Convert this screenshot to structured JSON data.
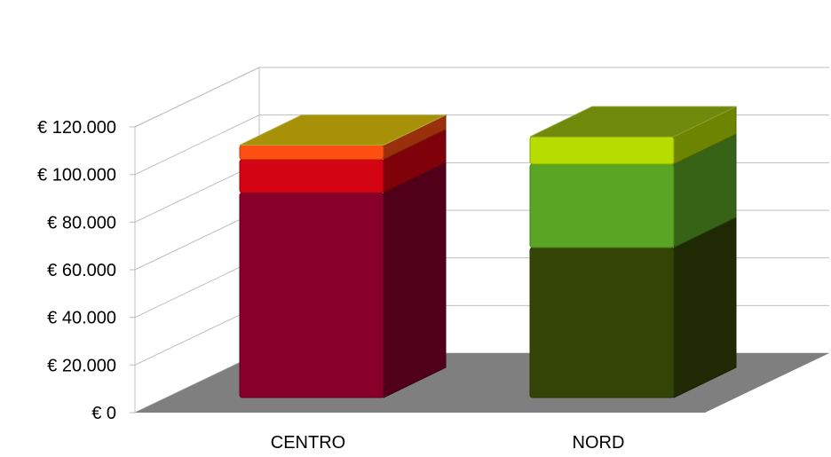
{
  "chart_data": {
    "type": "bar",
    "stacked": true,
    "three_d": true,
    "title": "",
    "xlabel": "",
    "ylabel": "",
    "categories": [
      "CENTRO",
      "NORD"
    ],
    "ylim": [
      0,
      120000
    ],
    "yticks": [
      0,
      20000,
      40000,
      60000,
      80000,
      100000,
      120000
    ],
    "ytick_labels": [
      "€ 0",
      "€ 20.000",
      "€ 40.000",
      "€ 60.000",
      "€ 80.000",
      "€ 100.000",
      "€ 120.000"
    ],
    "grid": true,
    "legend": "none",
    "stacks": [
      {
        "category": "CENTRO",
        "segments": [
          {
            "value": 86000,
            "color": "#87002A"
          },
          {
            "value": 14000,
            "color": "#D30413"
          },
          {
            "value": 6000,
            "color": "#FF4E12"
          }
        ]
      },
      {
        "category": "NORD",
        "segments": [
          {
            "value": 63000,
            "color": "#344406"
          },
          {
            "value": 35000,
            "color": "#5BA524"
          },
          {
            "value": 11500,
            "color": "#B6DC00"
          }
        ]
      }
    ]
  }
}
